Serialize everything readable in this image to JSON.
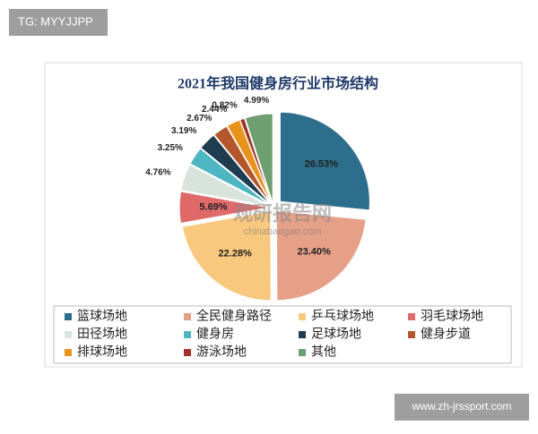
{
  "tag": "TG: MYYJJPP",
  "footer": "www.zh-jrssport.com",
  "watermark": "观研报告网",
  "watermark_url": "chinabaogao.com",
  "chart_data": {
    "type": "pie",
    "title": "2021年我国健身房行业市场结构",
    "categories": [
      "篮球场地",
      "全民健身路径",
      "乒乓球场地",
      "羽毛球场地",
      "田径场地",
      "健身房",
      "足球场地",
      "健身步道",
      "排球场地",
      "游泳场地",
      "其他"
    ],
    "values": [
      26.53,
      23.4,
      22.28,
      5.69,
      4.76,
      3.25,
      3.19,
      2.67,
      2.44,
      0.82,
      4.99
    ],
    "value_labels": [
      "26.53%",
      "23.40%",
      "22.28%",
      "5.69%",
      "4.76%",
      "3.25%",
      "3.19%",
      "2.67%",
      "2.44%",
      "0.82%",
      "4.99%"
    ],
    "colors": [
      "#2d6e8c",
      "#e6a088",
      "#f8c87e",
      "#e06a6a",
      "#d8e3dc",
      "#4db6c2",
      "#1f3c50",
      "#b4572c",
      "#e8931c",
      "#a0322a",
      "#6f9f70"
    ],
    "legend": "bottom"
  }
}
